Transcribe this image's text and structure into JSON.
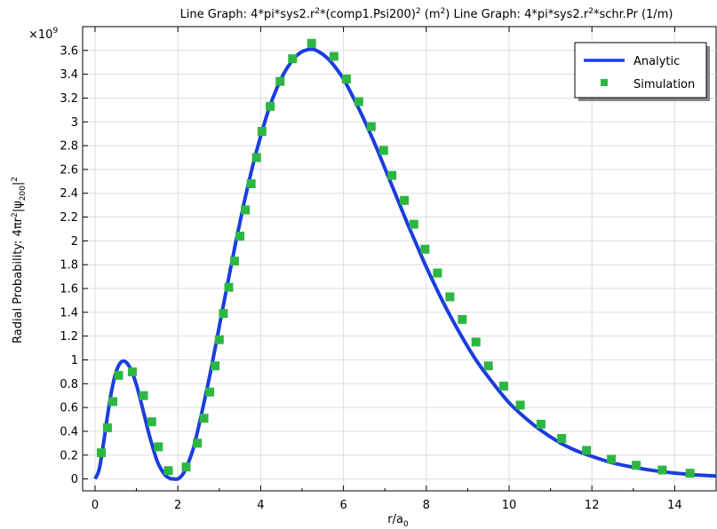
{
  "chart_data": {
    "type": "line",
    "title_parts": [
      "Line Graph: 4*pi*sys2.r",
      "2",
      "*(comp1.Psi200)",
      "2",
      " (m",
      "2",
      ")  Line Graph: 4*pi*sys2.r",
      "2",
      "*schr.Pr (1/m)"
    ],
    "xlabel_main": "r/a",
    "xlabel_sub": "0",
    "ylabel_parts": [
      "Radial Probability: 4πr",
      "2",
      "|ψ",
      "200",
      "|",
      "2"
    ],
    "y_multiplier_base": "×10",
    "y_multiplier_exp": "9",
    "xlim": [
      -0.3,
      15.0
    ],
    "ylim": [
      -0.1,
      3.8
    ],
    "x_ticks": [
      "0",
      "2",
      "4",
      "6",
      "8",
      "10",
      "12",
      "14"
    ],
    "x_tick_values": [
      0,
      2,
      4,
      6,
      8,
      10,
      12,
      14
    ],
    "y_ticks": [
      "0",
      "0.2",
      "0.4",
      "0.6",
      "0.8",
      "1",
      "1.2",
      "1.4",
      "1.6",
      "1.8",
      "2",
      "2.2",
      "2.4",
      "2.6",
      "2.8",
      "3",
      "3.2",
      "3.4",
      "3.6"
    ],
    "y_tick_values": [
      0,
      0.2,
      0.4,
      0.6,
      0.8,
      1.0,
      1.2,
      1.4,
      1.6,
      1.8,
      2.0,
      2.2,
      2.4,
      2.6,
      2.8,
      3.0,
      3.2,
      3.4,
      3.6
    ],
    "grid": true,
    "legend_position": "top-right",
    "series": [
      {
        "name": "Analytic",
        "style": "line",
        "color": "#1a3de0",
        "x": [
          0,
          0.1,
          0.2,
          0.3,
          0.4,
          0.5,
          0.6,
          0.7,
          0.8,
          0.9,
          1.0,
          1.1,
          1.2,
          1.3,
          1.4,
          1.5,
          1.6,
          1.7,
          1.8,
          1.9,
          2.0,
          2.1,
          2.2,
          2.3,
          2.4,
          2.6,
          2.8,
          3.0,
          3.2,
          3.4,
          3.6,
          3.8,
          4.0,
          4.2,
          4.4,
          4.6,
          4.8,
          5.0,
          5.24,
          5.4,
          5.6,
          5.8,
          6.0,
          6.2,
          6.4,
          6.6,
          6.8,
          7.0,
          7.2,
          7.4,
          7.6,
          7.8,
          8.0,
          8.4,
          8.8,
          9.2,
          9.6,
          10.0,
          10.4,
          10.8,
          11.2,
          11.6,
          12.0,
          12.5,
          13.0,
          13.5,
          14.0,
          14.5,
          15.0
        ],
        "y": [
          0,
          0.08,
          0.29,
          0.53,
          0.74,
          0.89,
          0.97,
          0.99,
          0.96,
          0.89,
          0.79,
          0.66,
          0.52,
          0.38,
          0.26,
          0.15,
          0.08,
          0.03,
          0.005,
          0.0,
          0.0,
          0.03,
          0.09,
          0.18,
          0.29,
          0.59,
          0.92,
          1.28,
          1.64,
          1.99,
          2.32,
          2.62,
          2.88,
          3.11,
          3.29,
          3.43,
          3.53,
          3.59,
          3.61,
          3.59,
          3.54,
          3.46,
          3.36,
          3.23,
          3.09,
          2.94,
          2.78,
          2.61,
          2.44,
          2.27,
          2.1,
          1.94,
          1.78,
          1.49,
          1.23,
          1.0,
          0.81,
          0.64,
          0.51,
          0.4,
          0.31,
          0.24,
          0.19,
          0.135,
          0.098,
          0.07,
          0.049,
          0.034,
          0.024
        ]
      },
      {
        "name": "Simulation",
        "style": "markers",
        "color": "#2db742",
        "x": [
          0.15,
          0.3,
          0.43,
          0.57,
          0.9,
          1.17,
          1.37,
          1.53,
          1.77,
          2.2,
          2.47,
          2.63,
          2.77,
          2.9,
          3.0,
          3.1,
          3.23,
          3.37,
          3.5,
          3.63,
          3.77,
          3.9,
          4.03,
          4.23,
          4.47,
          4.77,
          5.23,
          5.77,
          6.07,
          6.37,
          6.67,
          6.97,
          7.17,
          7.47,
          7.7,
          7.97,
          8.27,
          8.57,
          8.87,
          9.2,
          9.5,
          9.87,
          10.27,
          10.77,
          11.27,
          11.87,
          12.47,
          13.07,
          13.7,
          14.37
        ],
        "y": [
          0.22,
          0.43,
          0.65,
          0.87,
          0.9,
          0.7,
          0.48,
          0.27,
          0.07,
          0.1,
          0.3,
          0.51,
          0.73,
          0.95,
          1.17,
          1.39,
          1.61,
          1.83,
          2.04,
          2.26,
          2.48,
          2.7,
          2.92,
          3.13,
          3.34,
          3.53,
          3.66,
          3.55,
          3.36,
          3.17,
          2.96,
          2.76,
          2.55,
          2.34,
          2.14,
          1.93,
          1.73,
          1.53,
          1.34,
          1.15,
          0.95,
          0.78,
          0.62,
          0.46,
          0.34,
          0.24,
          0.165,
          0.115,
          0.075,
          0.048
        ]
      }
    ]
  },
  "legend": {
    "items": [
      "Analytic",
      "Simulation"
    ]
  }
}
